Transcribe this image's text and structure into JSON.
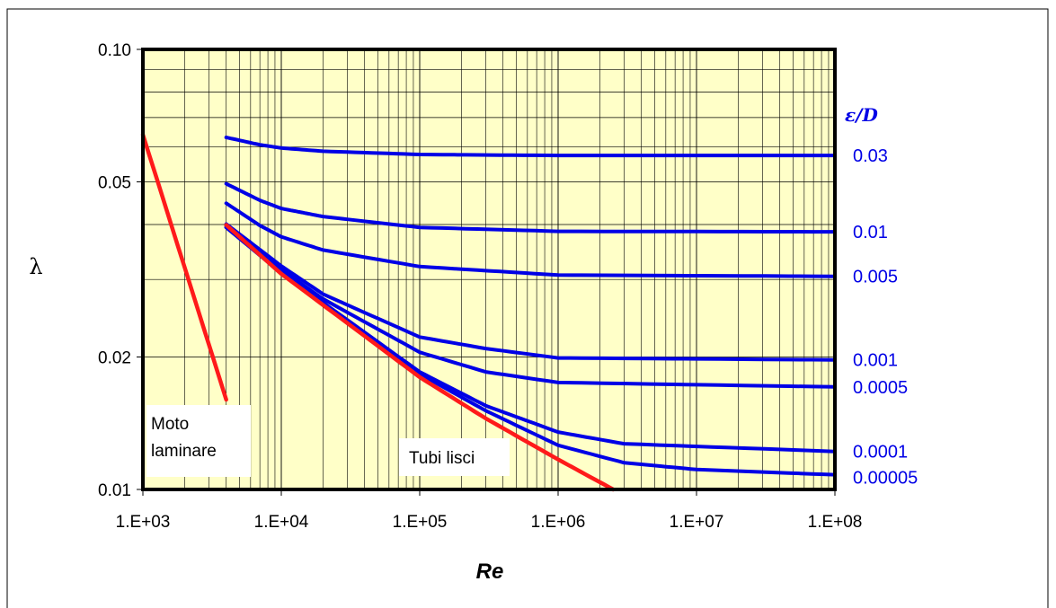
{
  "chart_data": {
    "type": "line",
    "x_scale": "log",
    "y_scale": "log",
    "xlim": [
      1000,
      100000000
    ],
    "ylim": [
      0.01,
      0.1
    ],
    "xlabel": "Re",
    "ylabel": "λ",
    "x_ticks": [
      "1.E+03",
      "1.E+04",
      "1.E+05",
      "1.E+06",
      "1.E+07",
      "1.E+08"
    ],
    "x_tick_values": [
      1000,
      10000,
      100000,
      1000000,
      10000000,
      100000000
    ],
    "y_ticks": [
      "0.01",
      "0.02",
      "0.05",
      "0.10"
    ],
    "y_tick_values": [
      0.01,
      0.02,
      0.05,
      0.1
    ],
    "grid": true,
    "legend_title": "ε/D",
    "plot_background": "#ffffc8",
    "colors": {
      "rough": "#0000e6",
      "smooth": "#ff1a1a",
      "frame": "#000000"
    },
    "series": [
      {
        "name": "0.03",
        "kind": "rough",
        "x": [
          4000,
          7000,
          10000,
          20000,
          100000,
          1000000,
          100000000
        ],
        "y": [
          0.0631,
          0.0607,
          0.0597,
          0.0587,
          0.0577,
          0.0574,
          0.0574
        ]
      },
      {
        "name": "0.01",
        "kind": "rough",
        "x": [
          4000,
          7000,
          10000,
          20000,
          100000,
          1000000,
          100000000
        ],
        "y": [
          0.0495,
          0.0454,
          0.0435,
          0.0417,
          0.0394,
          0.0386,
          0.0385
        ]
      },
      {
        "name": "0.005",
        "kind": "rough",
        "x": [
          4000,
          7000,
          10000,
          20000,
          100000,
          1000000,
          100000000
        ],
        "y": [
          0.0447,
          0.0398,
          0.0375,
          0.035,
          0.0321,
          0.0307,
          0.0305
        ]
      },
      {
        "name": "0.001",
        "kind": "rough",
        "x": [
          4000,
          10000,
          20000,
          100000,
          300000,
          1000000,
          100000000
        ],
        "y": [
          0.0401,
          0.0322,
          0.0278,
          0.0222,
          0.0209,
          0.0199,
          0.0197
        ]
      },
      {
        "name": "0.0005",
        "kind": "rough",
        "x": [
          4000,
          10000,
          20000,
          100000,
          300000,
          1000000,
          100000000
        ],
        "y": [
          0.0397,
          0.0316,
          0.0271,
          0.0205,
          0.0185,
          0.0175,
          0.0171
        ]
      },
      {
        "name": "0.0001",
        "kind": "rough",
        "x": [
          4000,
          10000,
          100000,
          300000,
          1000000,
          3000000,
          100000000
        ],
        "y": [
          0.0394,
          0.0311,
          0.0185,
          0.0155,
          0.0135,
          0.0127,
          0.0122
        ]
      },
      {
        "name": "0.00005",
        "kind": "rough",
        "x": [
          4000,
          10000,
          100000,
          300000,
          1000000,
          3000000,
          10000000,
          100000000
        ],
        "y": [
          0.0394,
          0.031,
          0.0183,
          0.0151,
          0.0126,
          0.0115,
          0.0111,
          0.0108
        ]
      },
      {
        "name": "Tubi lisci",
        "kind": "smooth",
        "x": [
          4000,
          10000,
          100000,
          300000,
          1000000,
          2500000
        ],
        "y": [
          0.0399,
          0.0309,
          0.018,
          0.0145,
          0.0117,
          0.01
        ]
      },
      {
        "name": "Moto laminare",
        "kind": "smooth",
        "x": [
          1000,
          4000
        ],
        "y": [
          0.064,
          0.016
        ]
      }
    ],
    "annotations": [
      {
        "id": "laminar",
        "lines": [
          "Moto",
          "laminare"
        ]
      },
      {
        "id": "smooth",
        "lines": [
          "Tubi lisci"
        ]
      }
    ]
  }
}
